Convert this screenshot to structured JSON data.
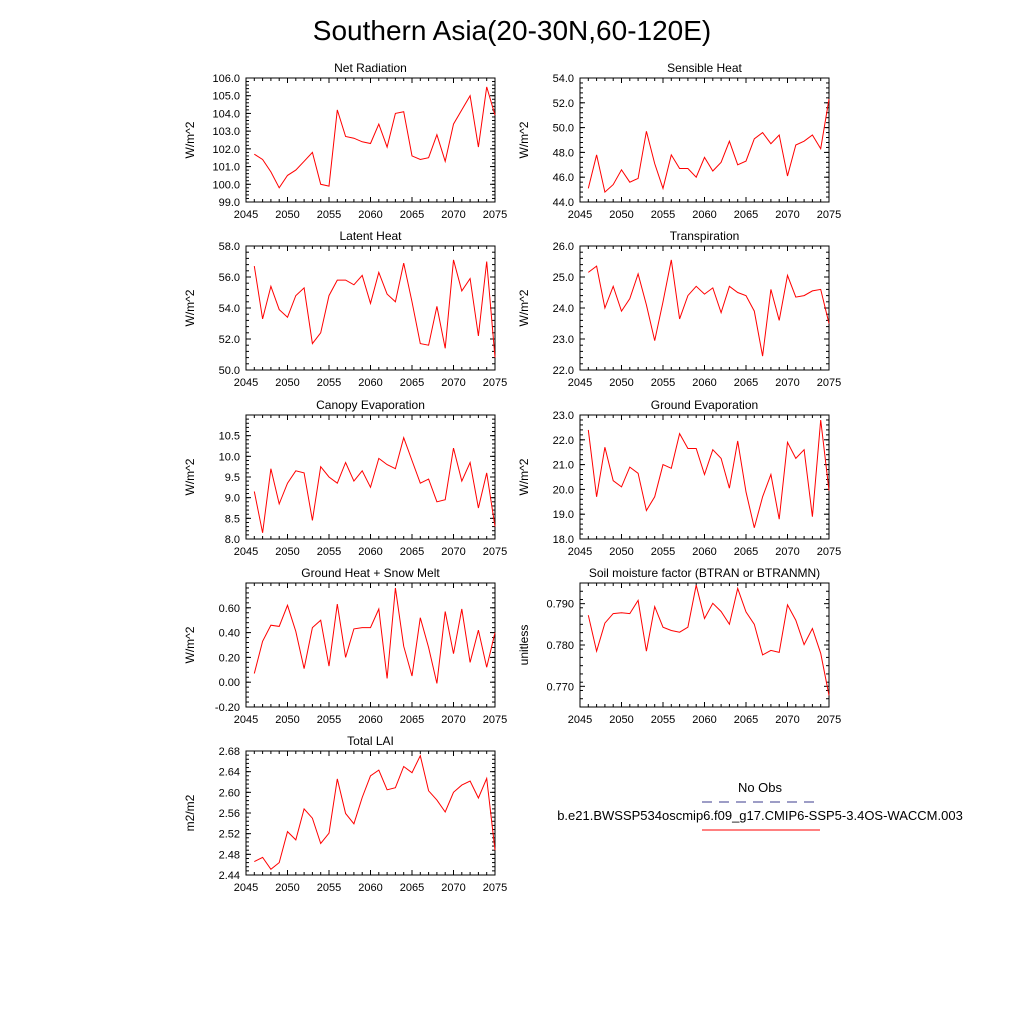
{
  "main_title": "Southern Asia(20-30N,60-120E)",
  "legend": {
    "obs_label": "No Obs",
    "obs_color": "#3b3b8c",
    "model_label": "b.e21.BWSSP534oscmip6.f09_g17.CMIP6-SSP5-3.4OS-WACCM.003",
    "model_color": "#ff0000"
  },
  "chart_data": [
    {
      "type": "line",
      "title": "Net Radiation",
      "ylabel": "W/m^2",
      "xlim": [
        2045,
        2075
      ],
      "ylim": [
        99.0,
        106.0
      ],
      "xticks": [
        2045,
        2050,
        2055,
        2060,
        2065,
        2070,
        2075
      ],
      "yticks": [
        99.0,
        100.0,
        101.0,
        102.0,
        103.0,
        104.0,
        105.0,
        106.0
      ],
      "ytick_labels": [
        "99.0",
        "100.0",
        "101.0",
        "102.0",
        "103.0",
        "104.0",
        "105.0",
        "106.0"
      ],
      "x": [
        2046,
        2047,
        2048,
        2049,
        2050,
        2051,
        2052,
        2053,
        2054,
        2055,
        2056,
        2057,
        2058,
        2059,
        2060,
        2061,
        2062,
        2063,
        2064,
        2065,
        2066,
        2067,
        2068,
        2069,
        2070,
        2071,
        2072,
        2073,
        2074,
        2075
      ],
      "values": [
        101.7,
        101.4,
        100.7,
        99.8,
        100.5,
        100.8,
        101.3,
        101.8,
        100.0,
        99.9,
        104.2,
        102.7,
        102.6,
        102.4,
        102.3,
        103.4,
        102.1,
        104.0,
        104.1,
        101.6,
        101.4,
        101.5,
        102.8,
        101.3,
        103.4,
        104.2,
        105.0,
        102.1,
        105.5,
        103.9
      ],
      "color": "#ff0000"
    },
    {
      "type": "line",
      "title": "Sensible Heat",
      "ylabel": "W/m^2",
      "xlim": [
        2045,
        2075
      ],
      "ylim": [
        44.0,
        54.0
      ],
      "xticks": [
        2045,
        2050,
        2055,
        2060,
        2065,
        2070,
        2075
      ],
      "yticks": [
        44.0,
        46.0,
        48.0,
        50.0,
        52.0,
        54.0
      ],
      "ytick_labels": [
        "44.0",
        "46.0",
        "48.0",
        "50.0",
        "52.0",
        "54.0"
      ],
      "x": [
        2046,
        2047,
        2048,
        2049,
        2050,
        2051,
        2052,
        2053,
        2054,
        2055,
        2056,
        2057,
        2058,
        2059,
        2060,
        2061,
        2062,
        2063,
        2064,
        2065,
        2066,
        2067,
        2068,
        2069,
        2070,
        2071,
        2072,
        2073,
        2074,
        2075
      ],
      "values": [
        45.1,
        47.8,
        44.8,
        45.4,
        46.6,
        45.6,
        45.9,
        49.7,
        47.1,
        45.1,
        47.8,
        46.7,
        46.7,
        46.0,
        47.6,
        46.5,
        47.2,
        48.9,
        47.0,
        47.3,
        49.1,
        49.6,
        48.7,
        49.4,
        46.1,
        48.6,
        48.9,
        49.4,
        48.3,
        52.3
      ],
      "color": "#ff0000"
    },
    {
      "type": "line",
      "title": "Latent Heat",
      "ylabel": "W/m^2",
      "xlim": [
        2045,
        2075
      ],
      "ylim": [
        50.0,
        58.0
      ],
      "xticks": [
        2045,
        2050,
        2055,
        2060,
        2065,
        2070,
        2075
      ],
      "yticks": [
        50.0,
        52.0,
        54.0,
        56.0,
        58.0
      ],
      "ytick_labels": [
        "50.0",
        "52.0",
        "54.0",
        "56.0",
        "58.0"
      ],
      "x": [
        2046,
        2047,
        2048,
        2049,
        2050,
        2051,
        2052,
        2053,
        2054,
        2055,
        2056,
        2057,
        2058,
        2059,
        2060,
        2061,
        2062,
        2063,
        2064,
        2065,
        2066,
        2067,
        2068,
        2069,
        2070,
        2071,
        2072,
        2073,
        2074,
        2075
      ],
      "values": [
        56.7,
        53.3,
        55.4,
        53.9,
        53.4,
        54.8,
        55.3,
        51.7,
        52.4,
        54.8,
        55.8,
        55.8,
        55.5,
        56.1,
        54.3,
        56.3,
        54.9,
        54.4,
        56.9,
        54.4,
        51.7,
        51.6,
        54.1,
        51.4,
        57.1,
        55.1,
        55.9,
        52.2,
        57.0,
        50.8
      ],
      "color": "#ff0000"
    },
    {
      "type": "line",
      "title": "Transpiration",
      "ylabel": "W/m^2",
      "xlim": [
        2045,
        2075
      ],
      "ylim": [
        22.0,
        26.0
      ],
      "xticks": [
        2045,
        2050,
        2055,
        2060,
        2065,
        2070,
        2075
      ],
      "yticks": [
        22.0,
        23.0,
        24.0,
        25.0,
        26.0
      ],
      "ytick_labels": [
        "22.0",
        "23.0",
        "24.0",
        "25.0",
        "26.0"
      ],
      "x": [
        2046,
        2047,
        2048,
        2049,
        2050,
        2051,
        2052,
        2053,
        2054,
        2055,
        2056,
        2057,
        2058,
        2059,
        2060,
        2061,
        2062,
        2063,
        2064,
        2065,
        2066,
        2067,
        2068,
        2069,
        2070,
        2071,
        2072,
        2073,
        2074,
        2075
      ],
      "values": [
        25.15,
        25.35,
        24.0,
        24.7,
        23.9,
        24.3,
        25.1,
        24.1,
        22.95,
        24.2,
        25.55,
        23.65,
        24.4,
        24.7,
        24.45,
        24.65,
        23.85,
        24.7,
        24.5,
        24.4,
        23.9,
        22.45,
        24.6,
        23.6,
        25.05,
        24.35,
        24.4,
        24.55,
        24.6,
        23.5
      ],
      "color": "#ff0000"
    },
    {
      "type": "line",
      "title": "Canopy Evaporation",
      "ylabel": "W/m^2",
      "xlim": [
        2045,
        2075
      ],
      "ylim": [
        8.0,
        11.0
      ],
      "xticks": [
        2045,
        2050,
        2055,
        2060,
        2065,
        2070,
        2075
      ],
      "yticks": [
        8.0,
        8.5,
        9.0,
        9.5,
        10.0,
        10.5
      ],
      "ytick_labels": [
        "8.0",
        "8.5",
        "9.0",
        "9.5",
        "10.0",
        "10.5"
      ],
      "x": [
        2046,
        2047,
        2048,
        2049,
        2050,
        2051,
        2052,
        2053,
        2054,
        2055,
        2056,
        2057,
        2058,
        2059,
        2060,
        2061,
        2062,
        2063,
        2064,
        2065,
        2066,
        2067,
        2068,
        2069,
        2070,
        2071,
        2072,
        2073,
        2074,
        2075
      ],
      "values": [
        9.15,
        8.15,
        9.7,
        8.85,
        9.35,
        9.65,
        9.6,
        8.45,
        9.75,
        9.5,
        9.35,
        9.85,
        9.4,
        9.65,
        9.25,
        9.95,
        9.8,
        9.7,
        10.45,
        9.9,
        9.35,
        9.45,
        8.9,
        8.95,
        10.2,
        9.4,
        9.85,
        8.75,
        9.6,
        8.3
      ],
      "color": "#ff0000"
    },
    {
      "type": "line",
      "title": "Ground Evaporation",
      "ylabel": "W/m^2",
      "xlim": [
        2045,
        2075
      ],
      "ylim": [
        18.0,
        23.0
      ],
      "xticks": [
        2045,
        2050,
        2055,
        2060,
        2065,
        2070,
        2075
      ],
      "yticks": [
        18.0,
        19.0,
        20.0,
        21.0,
        22.0,
        23.0
      ],
      "ytick_labels": [
        "18.0",
        "19.0",
        "20.0",
        "21.0",
        "22.0",
        "23.0"
      ],
      "x": [
        2046,
        2047,
        2048,
        2049,
        2050,
        2051,
        2052,
        2053,
        2054,
        2055,
        2056,
        2057,
        2058,
        2059,
        2060,
        2061,
        2062,
        2063,
        2064,
        2065,
        2066,
        2067,
        2068,
        2069,
        2070,
        2071,
        2072,
        2073,
        2074,
        2075
      ],
      "values": [
        22.4,
        19.7,
        21.7,
        20.35,
        20.1,
        20.9,
        20.65,
        19.15,
        19.7,
        21.0,
        20.85,
        22.25,
        21.65,
        21.65,
        20.6,
        21.6,
        21.25,
        20.05,
        21.95,
        19.9,
        18.45,
        19.7,
        20.6,
        18.8,
        21.9,
        21.25,
        21.6,
        18.9,
        22.8,
        19.95
      ],
      "color": "#ff0000"
    },
    {
      "type": "line",
      "title": "Ground Heat + Snow Melt",
      "ylabel": "W/m^2",
      "xlim": [
        2045,
        2075
      ],
      "ylim": [
        -0.2,
        0.8
      ],
      "xticks": [
        2045,
        2050,
        2055,
        2060,
        2065,
        2070,
        2075
      ],
      "yticks": [
        -0.2,
        0.0,
        0.2,
        0.4,
        0.6
      ],
      "ytick_labels": [
        "-0.20",
        "0.00",
        "0.20",
        "0.40",
        "0.60"
      ],
      "x": [
        2046,
        2047,
        2048,
        2049,
        2050,
        2051,
        2052,
        2053,
        2054,
        2055,
        2056,
        2057,
        2058,
        2059,
        2060,
        2061,
        2062,
        2063,
        2064,
        2065,
        2066,
        2067,
        2068,
        2069,
        2070,
        2071,
        2072,
        2073,
        2074,
        2075
      ],
      "values": [
        0.07,
        0.33,
        0.46,
        0.45,
        0.62,
        0.41,
        0.11,
        0.44,
        0.5,
        0.13,
        0.63,
        0.2,
        0.43,
        0.44,
        0.44,
        0.59,
        0.03,
        0.76,
        0.29,
        0.05,
        0.52,
        0.28,
        -0.01,
        0.57,
        0.23,
        0.59,
        0.16,
        0.42,
        0.12,
        0.4
      ],
      "color": "#ff0000"
    },
    {
      "type": "line",
      "title": "Soil moisture factor (BTRAN or BTRANMN)",
      "ylabel": "unitless",
      "xlim": [
        2045,
        2075
      ],
      "ylim": [
        0.765,
        0.795
      ],
      "xticks": [
        2045,
        2050,
        2055,
        2060,
        2065,
        2070,
        2075
      ],
      "yticks": [
        0.77,
        0.78,
        0.79
      ],
      "ytick_labels": [
        "0.770",
        "0.780",
        "0.790"
      ],
      "x": [
        2046,
        2047,
        2048,
        2049,
        2050,
        2051,
        2052,
        2053,
        2054,
        2055,
        2056,
        2057,
        2058,
        2059,
        2060,
        2061,
        2062,
        2063,
        2064,
        2065,
        2066,
        2067,
        2068,
        2069,
        2070,
        2071,
        2072,
        2073,
        2074,
        2075
      ],
      "values": [
        0.7872,
        0.7785,
        0.7853,
        0.7876,
        0.7878,
        0.7876,
        0.7908,
        0.7785,
        0.7893,
        0.7843,
        0.7835,
        0.7831,
        0.7843,
        0.7945,
        0.7864,
        0.7901,
        0.7881,
        0.785,
        0.7937,
        0.788,
        0.785,
        0.7776,
        0.7787,
        0.7782,
        0.7897,
        0.786,
        0.7801,
        0.784,
        0.778,
        0.7678
      ],
      "color": "#ff0000"
    },
    {
      "type": "line",
      "title": "Total LAI",
      "ylabel": "m2/m2",
      "xlim": [
        2045,
        2075
      ],
      "ylim": [
        2.44,
        2.68
      ],
      "xticks": [
        2045,
        2050,
        2055,
        2060,
        2065,
        2070,
        2075
      ],
      "yticks": [
        2.44,
        2.48,
        2.52,
        2.56,
        2.6,
        2.64,
        2.68
      ],
      "ytick_labels": [
        "2.44",
        "2.48",
        "2.52",
        "2.56",
        "2.60",
        "2.64",
        "2.68"
      ],
      "x": [
        2046,
        2047,
        2048,
        2049,
        2050,
        2051,
        2052,
        2053,
        2054,
        2055,
        2056,
        2057,
        2058,
        2059,
        2060,
        2061,
        2062,
        2063,
        2064,
        2065,
        2066,
        2067,
        2068,
        2069,
        2070,
        2071,
        2072,
        2073,
        2074,
        2075
      ],
      "values": [
        2.466,
        2.474,
        2.451,
        2.464,
        2.524,
        2.508,
        2.568,
        2.55,
        2.501,
        2.521,
        2.626,
        2.559,
        2.539,
        2.59,
        2.632,
        2.643,
        2.605,
        2.609,
        2.65,
        2.638,
        2.671,
        2.603,
        2.585,
        2.562,
        2.6,
        2.614,
        2.622,
        2.589,
        2.627,
        2.488
      ],
      "color": "#ff0000"
    }
  ]
}
